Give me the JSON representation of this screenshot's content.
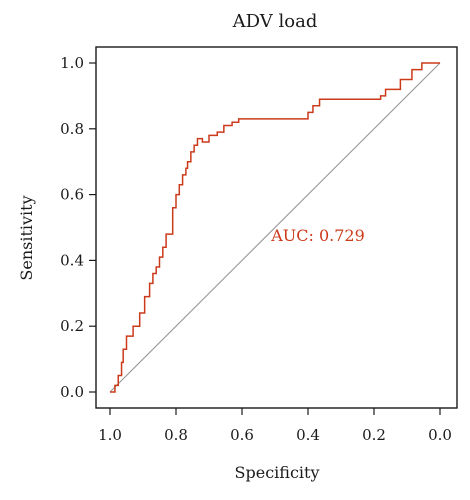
{
  "chart_data": {
    "type": "line",
    "title": "ADV load",
    "xlabel": "Specificity",
    "ylabel": "Sensitivity",
    "x_reversed": true,
    "xlim": [
      1.0,
      0.0
    ],
    "ylim": [
      0.0,
      1.0
    ],
    "x_ticks": [
      "1.0",
      "0.8",
      "0.6",
      "0.4",
      "0.2",
      "0.0"
    ],
    "y_ticks": [
      "0.0",
      "0.2",
      "0.4",
      "0.6",
      "0.8",
      "1.0"
    ],
    "annotation": "AUC: 0.729",
    "colors": {
      "roc": "#cc3a1a",
      "reference": "#999999",
      "annotation": "#cc3a1a"
    },
    "series": [
      {
        "specificity": [
          1.0,
          0.985,
          0.985,
          0.975,
          0.975,
          0.965,
          0.965,
          0.96,
          0.96,
          0.95,
          0.95,
          0.93,
          0.93,
          0.91,
          0.91,
          0.895,
          0.895,
          0.88,
          0.88,
          0.87,
          0.87,
          0.86,
          0.86,
          0.85,
          0.85,
          0.84,
          0.84,
          0.83,
          0.83,
          0.81,
          0.81,
          0.8,
          0.8,
          0.79,
          0.79,
          0.78,
          0.78,
          0.77,
          0.77,
          0.765,
          0.765,
          0.755,
          0.755,
          0.745,
          0.745,
          0.735,
          0.735,
          0.72,
          0.72,
          0.7,
          0.7,
          0.675,
          0.675,
          0.655,
          0.655,
          0.63,
          0.63,
          0.61,
          0.61,
          0.4,
          0.4,
          0.385,
          0.385,
          0.365,
          0.365,
          0.18,
          0.18,
          0.165,
          0.165,
          0.12,
          0.12,
          0.085,
          0.085,
          0.055,
          0.055,
          0.0
        ],
        "sensitivity": [
          0.0,
          0.0,
          0.02,
          0.02,
          0.05,
          0.05,
          0.09,
          0.09,
          0.13,
          0.13,
          0.17,
          0.17,
          0.2,
          0.2,
          0.24,
          0.24,
          0.29,
          0.29,
          0.33,
          0.33,
          0.36,
          0.36,
          0.38,
          0.38,
          0.41,
          0.41,
          0.44,
          0.44,
          0.48,
          0.48,
          0.56,
          0.56,
          0.6,
          0.6,
          0.63,
          0.63,
          0.66,
          0.66,
          0.68,
          0.68,
          0.7,
          0.7,
          0.73,
          0.73,
          0.75,
          0.75,
          0.77,
          0.77,
          0.76,
          0.76,
          0.78,
          0.78,
          0.79,
          0.79,
          0.81,
          0.81,
          0.82,
          0.82,
          0.83,
          0.83,
          0.85,
          0.85,
          0.87,
          0.87,
          0.89,
          0.89,
          0.9,
          0.9,
          0.92,
          0.92,
          0.95,
          0.95,
          0.98,
          0.98,
          1.0,
          1.0
        ]
      }
    ]
  }
}
